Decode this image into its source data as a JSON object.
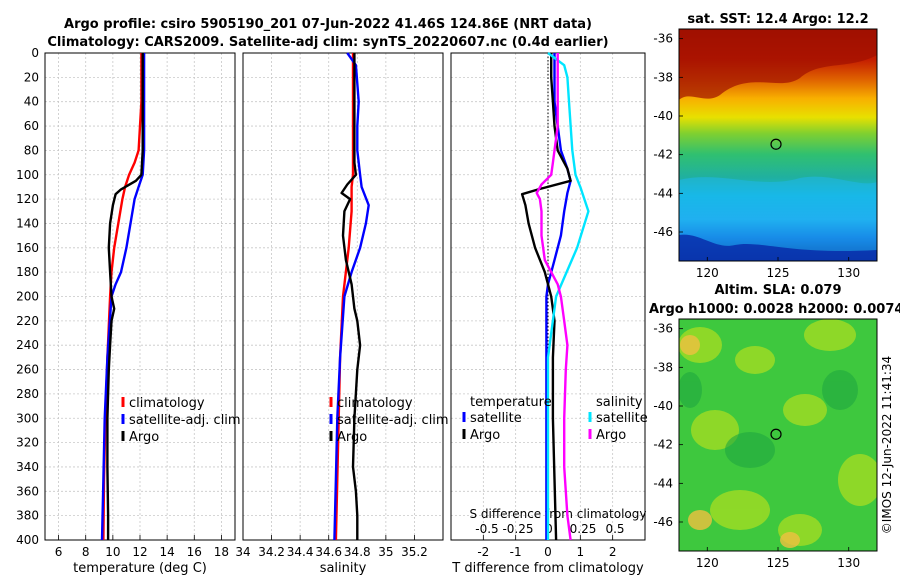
{
  "title_line1": "Argo profile: csiro 5905190_201 07-Jun-2022 41.46S 124.86E (NRT data)",
  "title_line2": "Climatology: CARS2009. Satellite-adj clim: synTS_20220607.nc (0.4d earlier)",
  "sst_title": "sat. SST: 12.4 Argo: 12.2",
  "sla_title1": "Altim. SLA: 0.079",
  "sla_title2": "Argo h1000: 0.0028 h2000: 0.0074",
  "stamp": "©IMOS 12-Jun-2022 11:41:34",
  "colors": {
    "climatology": "#ff0000",
    "satellite": "#0000ff",
    "argo": "#000000",
    "sal_sat": "#00e5ff",
    "sal_diff": "#ff00ff"
  },
  "chart_data": [
    {
      "type": "line",
      "name": "temperature",
      "xlabel": "temperature (deg C)",
      "ylabel": "",
      "xlim": [
        5,
        19
      ],
      "ylim": [
        400,
        0
      ],
      "xticks": [
        "6",
        "8",
        "10",
        "12",
        "14",
        "16",
        "18"
      ],
      "yticks": [
        "0",
        "20",
        "40",
        "60",
        "80",
        "100",
        "120",
        "140",
        "160",
        "180",
        "200",
        "220",
        "240",
        "260",
        "280",
        "300",
        "320",
        "340",
        "360",
        "380",
        "400"
      ],
      "grid": true,
      "legend": [
        "climatology",
        "satellite-adj. clim",
        "Argo"
      ],
      "series": [
        {
          "name": "climatology",
          "color": "#ff0000",
          "depth": [
            0,
            20,
            40,
            60,
            80,
            90,
            100,
            110,
            120,
            140,
            160,
            180,
            200,
            250,
            300,
            350,
            400
          ],
          "values": [
            12.1,
            12.1,
            12.1,
            12.0,
            11.9,
            11.6,
            11.2,
            10.9,
            10.7,
            10.4,
            10.1,
            9.9,
            9.8,
            9.6,
            9.45,
            9.35,
            9.3
          ]
        },
        {
          "name": "satellite-adj. clim",
          "color": "#0000ff",
          "depth": [
            0,
            20,
            40,
            60,
            80,
            100,
            110,
            120,
            140,
            160,
            180,
            190,
            200,
            250,
            300,
            350,
            400
          ],
          "values": [
            12.3,
            12.3,
            12.3,
            12.3,
            12.3,
            12.2,
            11.9,
            11.6,
            11.3,
            11.0,
            10.6,
            10.2,
            9.9,
            9.6,
            9.4,
            9.3,
            9.2
          ]
        },
        {
          "name": "Argo",
          "color": "#000000",
          "depth": [
            0,
            20,
            40,
            60,
            80,
            100,
            105,
            112,
            116,
            125,
            140,
            160,
            180,
            200,
            210,
            220,
            240,
            260,
            300,
            340,
            380,
            400
          ],
          "values": [
            12.2,
            12.2,
            12.2,
            12.2,
            12.2,
            12.1,
            11.7,
            10.6,
            10.2,
            10.0,
            9.8,
            9.7,
            9.8,
            9.9,
            10.1,
            9.9,
            9.8,
            9.7,
            9.6,
            9.6,
            9.65,
            9.65
          ]
        }
      ]
    },
    {
      "type": "line",
      "name": "salinity",
      "xlabel": "salinity",
      "ylabel": "",
      "xlim": [
        34.0,
        35.4
      ],
      "ylim": [
        400,
        0
      ],
      "xticks": [
        "34",
        "34.2",
        "34.4",
        "34.6",
        "34.8",
        "35",
        "35.2"
      ],
      "grid": true,
      "legend": [
        "climatology",
        "satellite-adj. clim",
        "Argo"
      ],
      "series": [
        {
          "name": "climatology",
          "color": "#ff0000",
          "depth": [
            0,
            40,
            80,
            100,
            110,
            130,
            160,
            200,
            250,
            300,
            350,
            400
          ],
          "values": [
            34.77,
            34.77,
            34.77,
            34.77,
            34.76,
            34.76,
            34.74,
            34.7,
            34.68,
            34.67,
            34.66,
            34.65
          ]
        },
        {
          "name": "satellite-adj. clim",
          "color": "#0000ff",
          "depth": [
            0,
            10,
            40,
            60,
            80,
            100,
            110,
            125,
            140,
            160,
            180,
            200,
            250,
            300,
            350,
            400
          ],
          "values": [
            34.73,
            34.79,
            34.81,
            34.8,
            34.8,
            34.82,
            34.83,
            34.88,
            34.86,
            34.82,
            34.76,
            34.71,
            34.68,
            34.66,
            34.65,
            34.64
          ]
        },
        {
          "name": "Argo",
          "color": "#000000",
          "depth": [
            0,
            20,
            60,
            90,
            100,
            108,
            115,
            120,
            130,
            150,
            170,
            190,
            200,
            210,
            220,
            240,
            260,
            300,
            340,
            360,
            380,
            400
          ],
          "values": [
            34.78,
            34.78,
            34.78,
            34.78,
            34.79,
            34.73,
            34.69,
            34.75,
            34.71,
            34.7,
            34.72,
            34.76,
            34.77,
            34.78,
            34.8,
            34.82,
            34.8,
            34.78,
            34.77,
            34.79,
            34.8,
            34.8
          ]
        }
      ]
    },
    {
      "type": "line",
      "name": "difference",
      "xlabel": "T difference from climatology",
      "top_axis_label": "S difference from climatology",
      "top_ticks": [
        "-0.5",
        "-0.25",
        "0",
        "0.25",
        "0.5"
      ],
      "xlim": [
        -3,
        3
      ],
      "ylim": [
        400,
        0
      ],
      "xticks": [
        "-2",
        "-1",
        "0",
        "1",
        "2"
      ],
      "grid": true,
      "legend": [
        "temperature",
        "satellite",
        "Argo",
        "salinity",
        "satellite",
        "Argo"
      ],
      "series": [
        {
          "name": "T satellite",
          "color": "#0000ff",
          "depth": [
            0,
            20,
            40,
            60,
            80,
            95,
            105,
            115,
            130,
            150,
            170,
            190,
            200,
            250,
            300,
            350,
            400
          ],
          "values": [
            0.2,
            0.2,
            0.2,
            0.3,
            0.4,
            0.6,
            0.7,
            0.6,
            0.5,
            0.4,
            0.2,
            0.0,
            -0.05,
            -0.05,
            -0.05,
            -0.05,
            -0.05
          ]
        },
        {
          "name": "T Argo",
          "color": "#000000",
          "depth": [
            0,
            20,
            40,
            60,
            80,
            95,
            105,
            112,
            116,
            125,
            140,
            160,
            180,
            200,
            220,
            250,
            300,
            350,
            400
          ],
          "values": [
            0.1,
            0.1,
            0.15,
            0.2,
            0.3,
            0.6,
            0.7,
            -0.3,
            -0.8,
            -0.7,
            -0.6,
            -0.4,
            -0.1,
            0.1,
            0.2,
            0.15,
            0.15,
            0.2,
            0.25
          ]
        },
        {
          "name": "S satellite",
          "color": "#00e5ff",
          "depth": [
            0,
            10,
            20,
            40,
            80,
            100,
            110,
            130,
            160,
            200,
            250,
            300,
            350,
            400
          ],
          "values": [
            0.0,
            0.1,
            0.12,
            0.13,
            0.15,
            0.17,
            0.2,
            0.25,
            0.18,
            0.05,
            0.0,
            0.0,
            0.0,
            0.0
          ]
        },
        {
          "name": "S Argo",
          "color": "#ff00ff",
          "depth": [
            0,
            20,
            60,
            90,
            100,
            108,
            115,
            120,
            130,
            150,
            170,
            190,
            200,
            220,
            240,
            260,
            300,
            340,
            380,
            400
          ],
          "values": [
            0.06,
            0.06,
            0.06,
            0.03,
            0.02,
            -0.04,
            -0.07,
            -0.05,
            -0.04,
            -0.04,
            -0.02,
            0.06,
            0.08,
            0.1,
            0.12,
            0.11,
            0.1,
            0.1,
            0.12,
            0.14
          ]
        }
      ]
    },
    {
      "type": "heatmap",
      "name": "sat-sst-map",
      "title": "sat. SST: 12.4 Argo: 12.2",
      "xlim": [
        118,
        132
      ],
      "ylim": [
        -47.5,
        -35.5
      ],
      "xticks": [
        "120",
        "125",
        "130"
      ],
      "yticks": [
        "-36",
        "-38",
        "-40",
        "-42",
        "-44",
        "-46"
      ],
      "marker": {
        "lon": 124.86,
        "lat": -41.46
      }
    },
    {
      "type": "heatmap",
      "name": "altim-sla-map",
      "title": "Altim. SLA: 0.079",
      "xlim": [
        118,
        132
      ],
      "ylim": [
        -47.5,
        -35.5
      ],
      "xticks": [
        "120",
        "125",
        "130"
      ],
      "yticks": [
        "-36",
        "-38",
        "-40",
        "-42",
        "-44",
        "-46"
      ],
      "marker": {
        "lon": 124.86,
        "lat": -41.46
      }
    }
  ]
}
